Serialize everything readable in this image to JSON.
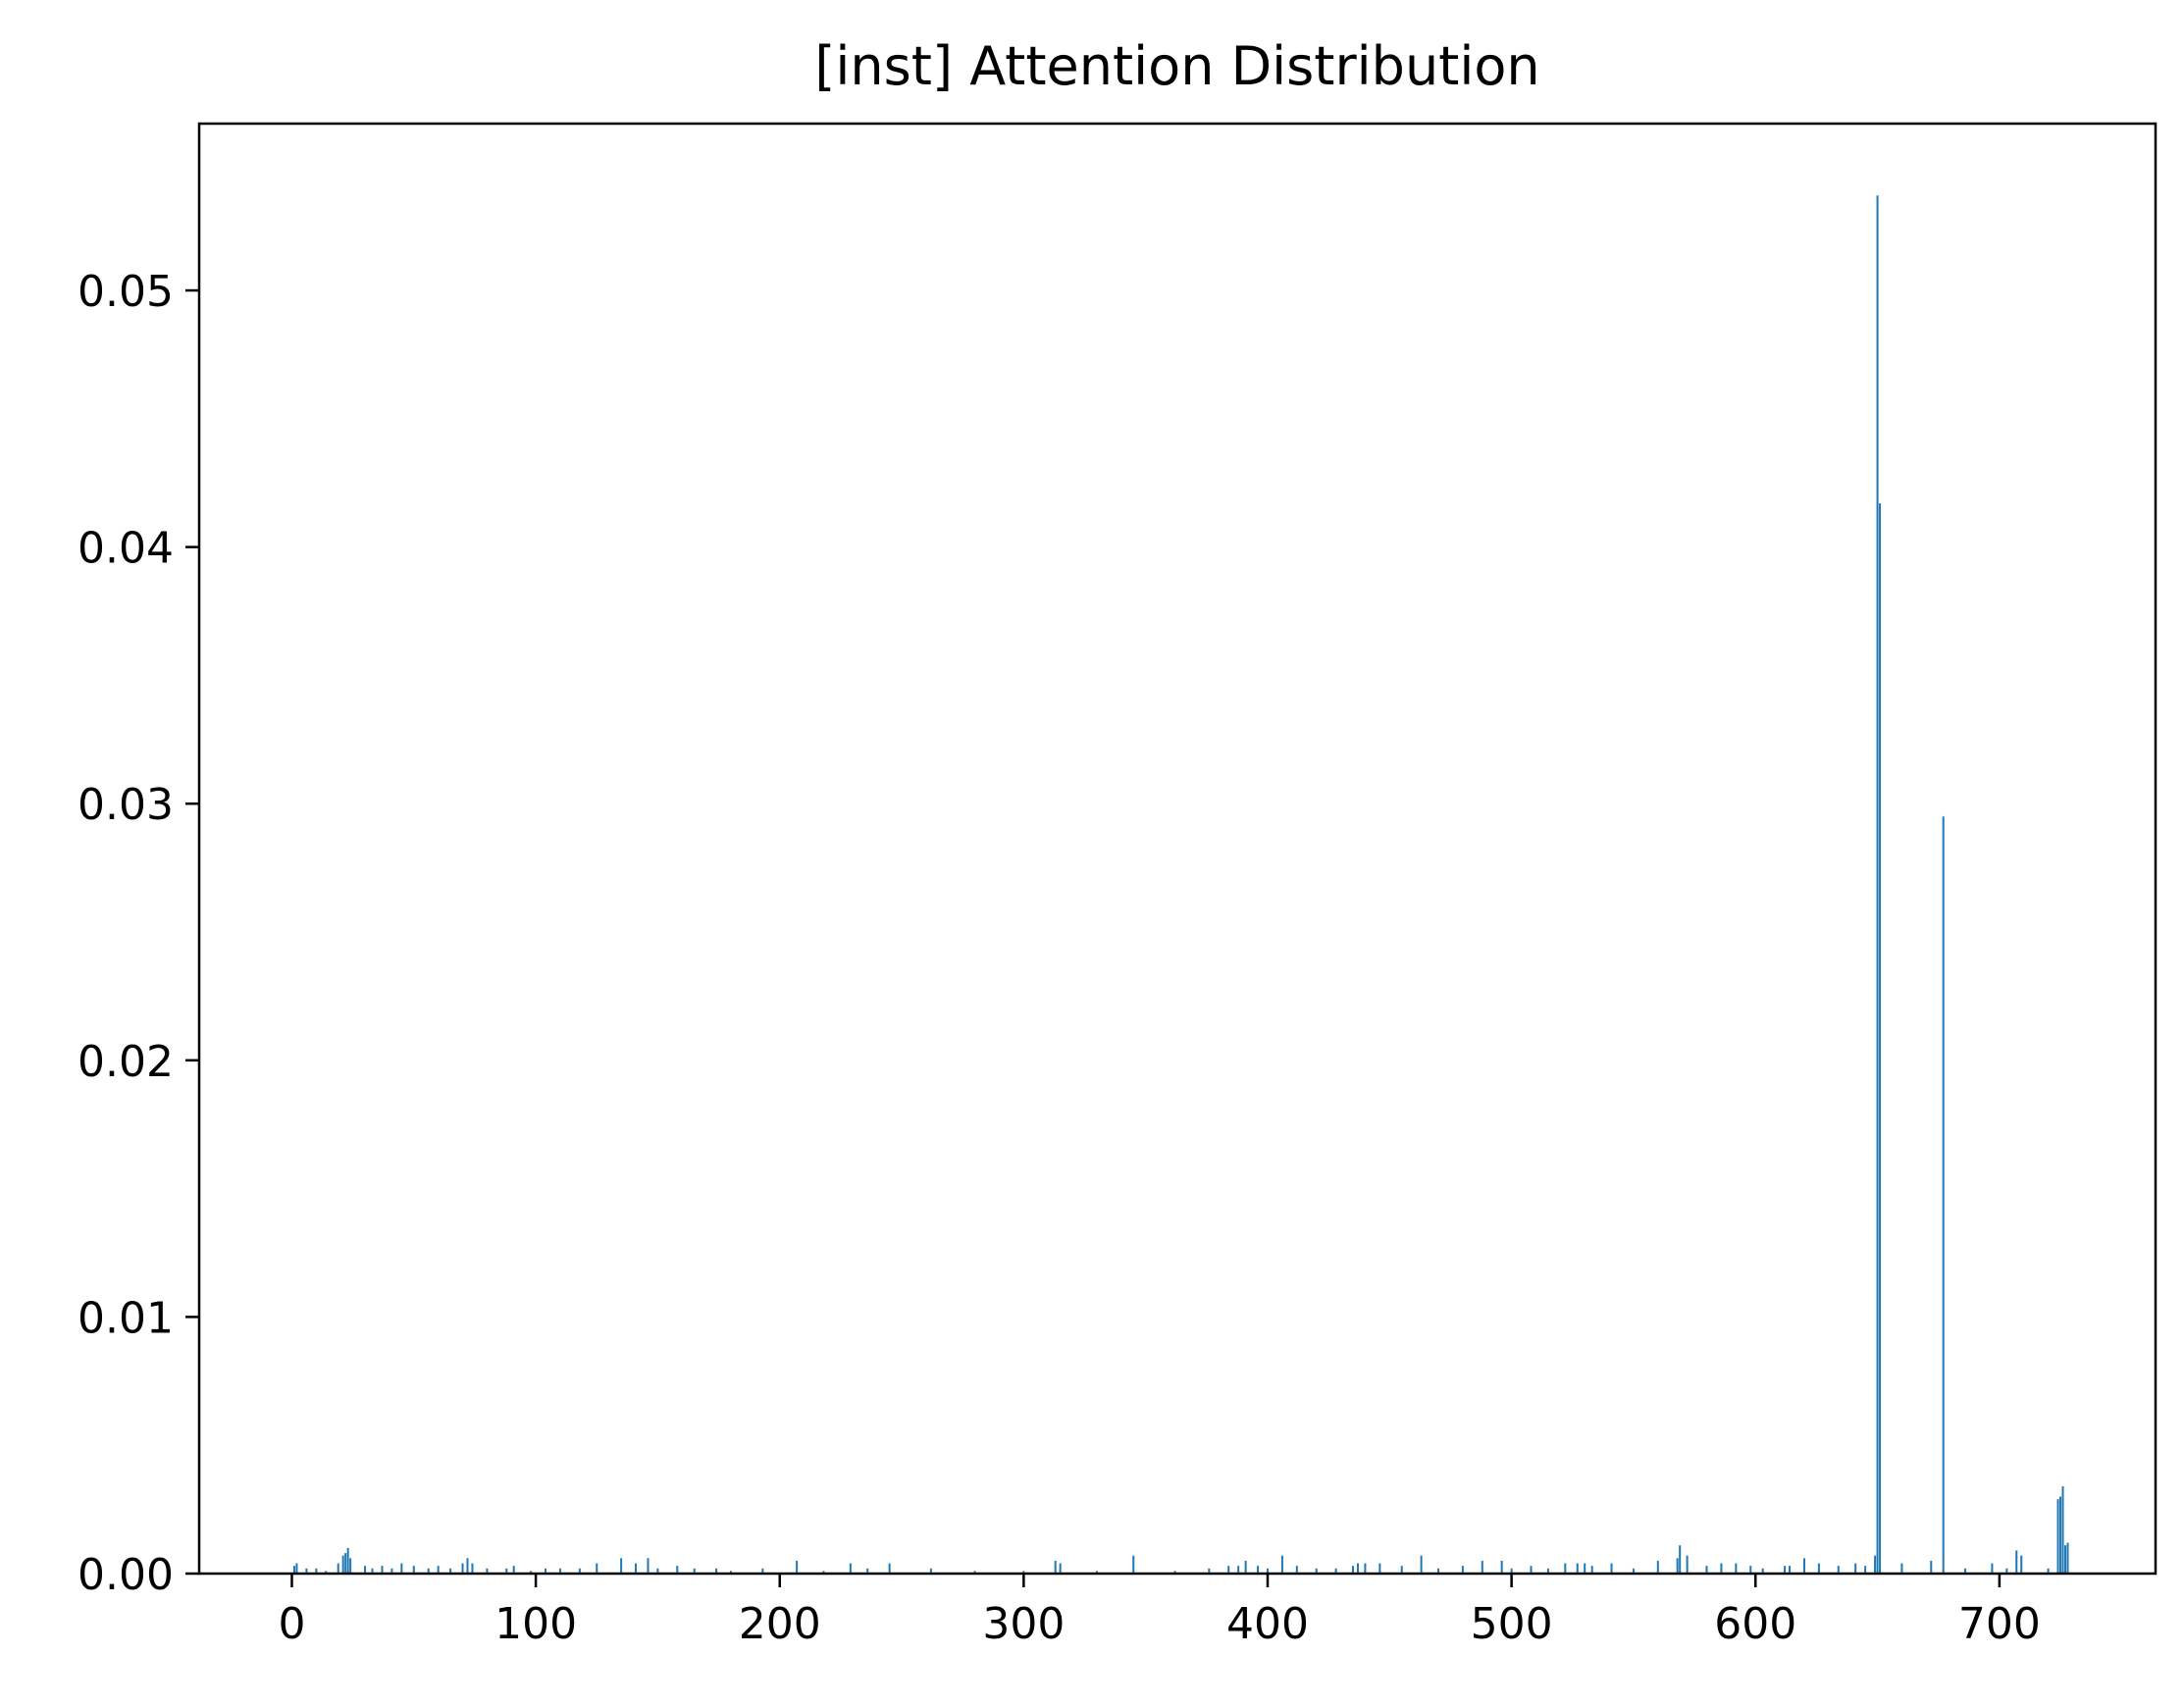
{
  "chart_data": {
    "type": "bar",
    "title": "[inst] Attention Distribution",
    "xlabel": "",
    "ylabel": "",
    "xlim": [
      -38,
      764
    ],
    "ylim": [
      0,
      0.0565
    ],
    "grid": false,
    "bar_color": "#1f77b4",
    "x_ticks": [
      0,
      100,
      200,
      300,
      400,
      500,
      600,
      700
    ],
    "x_tick_labels": [
      "0",
      "100",
      "200",
      "300",
      "400",
      "500",
      "600",
      "700"
    ],
    "y_ticks": [
      0,
      0.01,
      0.02,
      0.03,
      0.04,
      0.05
    ],
    "y_tick_labels": [
      "0.00",
      "0.01",
      "0.02",
      "0.03",
      "0.04",
      "0.05"
    ],
    "x": [
      1,
      2,
      6,
      10,
      14,
      19,
      21,
      22,
      23,
      24,
      30,
      33,
      37,
      41,
      45,
      50,
      56,
      60,
      65,
      70,
      72,
      74,
      80,
      88,
      91,
      98,
      104,
      110,
      118,
      125,
      135,
      141,
      146,
      150,
      158,
      165,
      174,
      180,
      193,
      207,
      218,
      229,
      236,
      245,
      262,
      280,
      300,
      313,
      315,
      330,
      345,
      362,
      376,
      384,
      388,
      391,
      396,
      400,
      406,
      412,
      420,
      428,
      435,
      437,
      440,
      446,
      455,
      463,
      470,
      480,
      488,
      496,
      500,
      508,
      515,
      522,
      527,
      530,
      533,
      541,
      550,
      560,
      568,
      569,
      572,
      580,
      586,
      592,
      598,
      603,
      612,
      614,
      620,
      626,
      634,
      641,
      645,
      649,
      650,
      651,
      660,
      672,
      677,
      686,
      697,
      703,
      707,
      709,
      720,
      724,
      725,
      726,
      727,
      728
    ],
    "values": [
      0.0003,
      0.0004,
      0.0002,
      0.0002,
      0.0001,
      0.0004,
      0.0007,
      0.0008,
      0.001,
      0.0006,
      0.0003,
      0.0002,
      0.0003,
      0.0002,
      0.0004,
      0.0003,
      0.0002,
      0.0003,
      0.0002,
      0.0004,
      0.0006,
      0.0004,
      0.0002,
      0.0002,
      0.0003,
      0.0001,
      0.0002,
      0.0002,
      0.0002,
      0.0004,
      0.0006,
      0.0004,
      0.0006,
      0.0002,
      0.0003,
      0.0002,
      0.0002,
      0.0001,
      0.0002,
      0.0005,
      0.0001,
      0.0004,
      0.0002,
      0.0004,
      0.0002,
      0.0001,
      0.0001,
      0.0005,
      0.0004,
      0.0001,
      0.0007,
      0.0001,
      0.0002,
      0.0003,
      0.0003,
      0.0005,
      0.0003,
      0.0002,
      0.0007,
      0.0003,
      0.0002,
      0.0002,
      0.0003,
      0.0004,
      0.0004,
      0.0004,
      0.0003,
      0.0007,
      0.0002,
      0.0003,
      0.0005,
      0.0005,
      0.0002,
      0.0003,
      0.0002,
      0.0004,
      0.0004,
      0.0004,
      0.0003,
      0.0004,
      0.0002,
      0.0005,
      0.0006,
      0.0011,
      0.0007,
      0.0003,
      0.0004,
      0.0004,
      0.0003,
      0.0002,
      0.0003,
      0.0003,
      0.0006,
      0.0004,
      0.0003,
      0.0004,
      0.0003,
      0.0007,
      0.0537,
      0.0417,
      0.0004,
      0.0005,
      0.0295,
      0.0002,
      0.0004,
      0.0002,
      0.0009,
      0.0007,
      0.0002,
      0.0029,
      0.003,
      0.0034,
      0.0011,
      0.0012
    ]
  }
}
